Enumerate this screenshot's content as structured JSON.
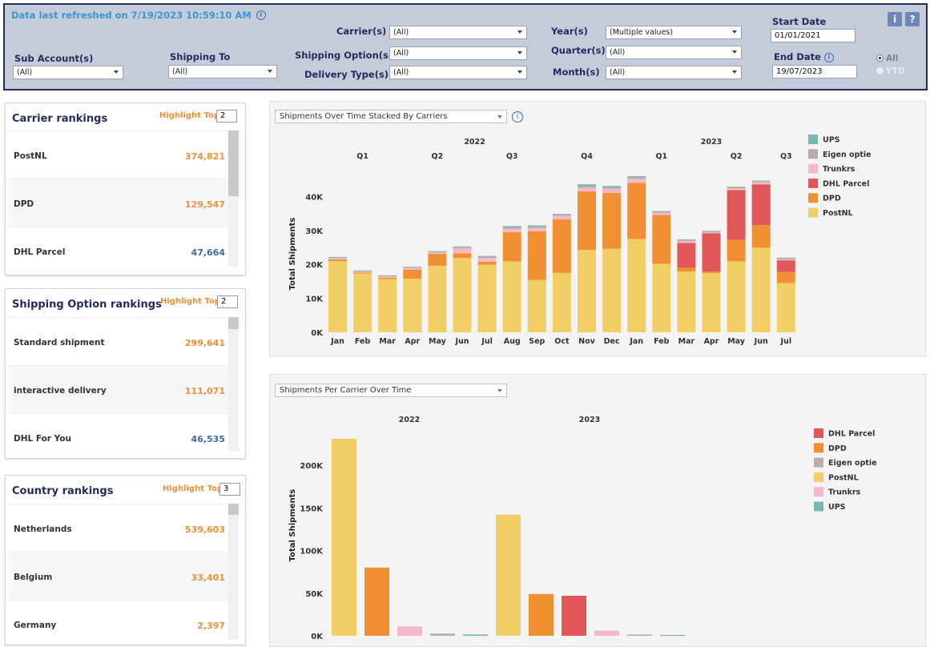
{
  "filters": {
    "refresh_text": "Data last refreshed on 7/19/2023 10:59:10 AM",
    "sub_account": {
      "label": "Sub Account(s)",
      "value": "(All)"
    },
    "shipping_to": {
      "label": "Shipping To",
      "value": "(All)"
    },
    "carrier": {
      "label": "Carrier(s)",
      "value": "(All)"
    },
    "shipping_option": {
      "label": "Shipping Option(s)",
      "value": "(All)"
    },
    "delivery_type": {
      "label": "Delivery Type(s)",
      "value": "(All)"
    },
    "year": {
      "label": "Year(s)",
      "value": "(Multiple values)"
    },
    "quarter": {
      "label": "Quarter(s)",
      "value": "(All)"
    },
    "month": {
      "label": "Month(s)",
      "value": "(All)"
    },
    "start_date": {
      "label": "Start Date",
      "value": "01/01/2021"
    },
    "end_date": {
      "label": "End Date",
      "value": "19/07/2023"
    },
    "radio_all": "All",
    "radio_ytd": "YTD",
    "info_btn": "i",
    "help_btn": "?"
  },
  "carrier_rankings": {
    "title": "Carrier rankings",
    "highlight_label": "Highlight Top",
    "highlight_value": "2",
    "rows": [
      {
        "name": "PostNL",
        "value": "374,821",
        "color": "#f18f33"
      },
      {
        "name": "DPD",
        "value": "129,547",
        "color": "#f18f33"
      },
      {
        "name": "DHL Parcel",
        "value": "47,664",
        "color": "#3f6aa8"
      }
    ]
  },
  "shipping_rankings": {
    "title": "Shipping Option  rankings",
    "highlight_label": "Highlight Top",
    "highlight_value": "2",
    "rows": [
      {
        "name": "Standard shipment",
        "value": "299,641",
        "color": "#f18f33"
      },
      {
        "name": "interactive delivery",
        "value": "111,071",
        "color": "#f18f33"
      },
      {
        "name": "DHL For You",
        "value": "46,535",
        "color": "#3f6aa8"
      }
    ]
  },
  "country_rankings": {
    "title": "Country rankings",
    "highlight_label": "Highlight Top",
    "highlight_value": "3",
    "rows": [
      {
        "name": "Netherlands",
        "value": "539,603",
        "color": "#f18f33"
      },
      {
        "name": "Belgium",
        "value": "33,401",
        "color": "#f18f33"
      },
      {
        "name": "Germany",
        "value": "2,397",
        "color": "#f18f33"
      }
    ]
  },
  "chart1_select": "Shipments Over Time Stacked By Carriers",
  "chart2_select": "Shipments Per Carrier Over Time",
  "colors": {
    "UPS": "#7ab8ae",
    "Eigen optie": "#b9aea8",
    "Trunkrs": "#f6b8c8",
    "DHL Parcel": "#e2575a",
    "DPD": "#f18f33",
    "PostNL": "#f1cf66"
  },
  "chart_data": [
    {
      "type": "bar",
      "stacked": true,
      "ylabel": "Total Shipments",
      "yticks": [
        "0K",
        "10K",
        "20K",
        "30K",
        "40K"
      ],
      "ylim": [
        0,
        46000
      ],
      "years": [
        {
          "label": "2022",
          "start": 0,
          "end": 11
        },
        {
          "label": "2023",
          "start": 12,
          "end": 18
        }
      ],
      "quarters": [
        {
          "label": "Q1",
          "start": 0,
          "end": 2
        },
        {
          "label": "Q2",
          "start": 3,
          "end": 5
        },
        {
          "label": "Q3",
          "start": 6,
          "end": 8
        },
        {
          "label": "Q4",
          "start": 9,
          "end": 11
        },
        {
          "label": "Q1",
          "start": 12,
          "end": 14
        },
        {
          "label": "Q2",
          "start": 15,
          "end": 17
        },
        {
          "label": "Q3",
          "start": 18,
          "end": 18
        }
      ],
      "categories": [
        "Jan",
        "Feb",
        "Mar",
        "Apr",
        "May",
        "Jun",
        "Jul",
        "Aug",
        "Sep",
        "Oct",
        "Nov",
        "Dec",
        "Jan",
        "Feb",
        "Mar",
        "Apr",
        "May",
        "Jun",
        "Jul"
      ],
      "legend": [
        "UPS",
        "Eigen optie",
        "Trunkrs",
        "DHL Parcel",
        "DPD",
        "PostNL"
      ],
      "series": [
        {
          "name": "PostNL",
          "values": [
            21000,
            17300,
            15700,
            15800,
            19600,
            21900,
            19900,
            20900,
            15400,
            17500,
            24300,
            24600,
            27500,
            20200,
            17900,
            17400,
            20900,
            24900,
            14500
          ]
        },
        {
          "name": "DPD",
          "values": [
            500,
            300,
            400,
            2600,
            3500,
            1400,
            900,
            8600,
            14400,
            15800,
            17200,
            16500,
            16500,
            14400,
            1100,
            500,
            6300,
            6700,
            3300
          ]
        },
        {
          "name": "DHL Parcel",
          "values": [
            0,
            0,
            0,
            0,
            0,
            0,
            0,
            0,
            0,
            0,
            0,
            0,
            0,
            0,
            7300,
            11300,
            14700,
            12000,
            3400
          ]
        },
        {
          "name": "Trunkrs",
          "values": [
            400,
            300,
            400,
            600,
            500,
            1400,
            1100,
            1000,
            900,
            1000,
            1100,
            1200,
            1300,
            600,
            600,
            300,
            500,
            600,
            300
          ]
        },
        {
          "name": "Eigen optie",
          "values": [
            200,
            200,
            200,
            200,
            200,
            400,
            400,
            400,
            400,
            400,
            400,
            400,
            400,
            300,
            300,
            200,
            300,
            300,
            300
          ]
        },
        {
          "name": "UPS",
          "values": [
            100,
            100,
            100,
            100,
            100,
            200,
            200,
            400,
            400,
            200,
            600,
            400,
            300,
            200,
            200,
            200,
            200,
            200,
            200
          ]
        }
      ]
    },
    {
      "type": "bar",
      "ylabel": "Total Shipments",
      "yticks": [
        "0K",
        "50K",
        "100K",
        "150K",
        "200K"
      ],
      "ylim": [
        0,
        240000
      ],
      "years": [
        "2022",
        "2023"
      ],
      "legend": [
        "DHL Parcel",
        "DPD",
        "Eigen optie",
        "PostNL",
        "Trunkrs",
        "UPS"
      ],
      "groups": [
        {
          "year": "2022",
          "bars": [
            {
              "name": "PostNL",
              "value": 231000
            },
            {
              "name": "DPD",
              "value": 80000
            },
            {
              "name": "Trunkrs",
              "value": 11000
            },
            {
              "name": "Eigen optie",
              "value": 2500
            },
            {
              "name": "UPS",
              "value": 1500
            }
          ]
        },
        {
          "year": "2023",
          "bars": [
            {
              "name": "PostNL",
              "value": 142000
            },
            {
              "name": "DPD",
              "value": 49000
            },
            {
              "name": "DHL Parcel",
              "value": 47000
            },
            {
              "name": "Trunkrs",
              "value": 6000
            },
            {
              "name": "Eigen optie",
              "value": 1500
            },
            {
              "name": "UPS",
              "value": 1000
            }
          ]
        }
      ]
    }
  ]
}
